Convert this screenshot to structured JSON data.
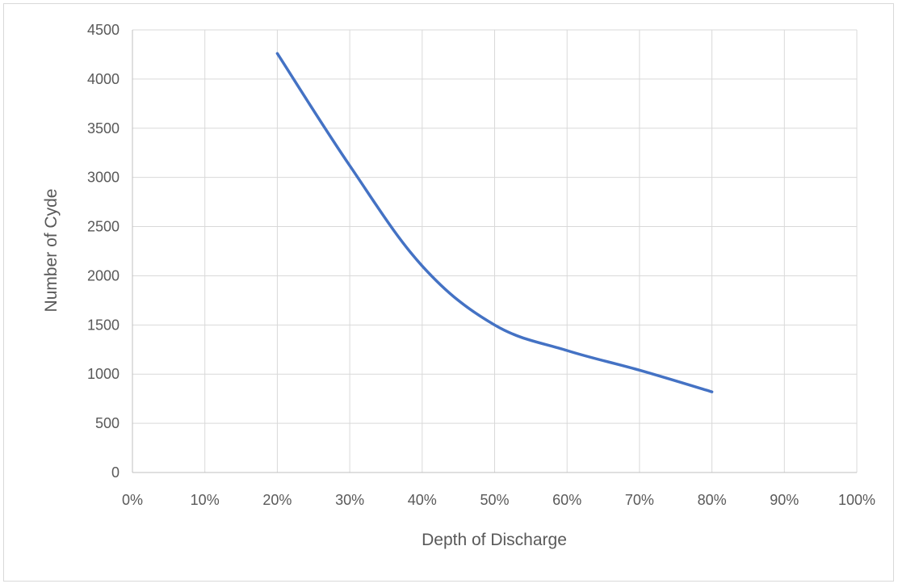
{
  "chart_data": {
    "type": "line",
    "title": "",
    "xlabel": "Depth of Discharge",
    "ylabel": "Number of Cyde",
    "xlim": [
      0,
      1
    ],
    "ylim": [
      0,
      4500
    ],
    "x_ticks": [
      0,
      0.1,
      0.2,
      0.3,
      0.4,
      0.5,
      0.6,
      0.7,
      0.8,
      0.9,
      1.0
    ],
    "x_tick_labels": [
      "0%",
      "10%",
      "20%",
      "30%",
      "40%",
      "50%",
      "60%",
      "70%",
      "80%",
      "90%",
      "100%"
    ],
    "y_ticks": [
      0,
      500,
      1000,
      1500,
      2000,
      2500,
      3000,
      3500,
      4000,
      4500
    ],
    "y_tick_labels": [
      "0",
      "500",
      "1000",
      "1500",
      "2000",
      "2500",
      "3000",
      "3500",
      "4000",
      "4500"
    ],
    "grid": true,
    "legend": "none",
    "series": [
      {
        "color": "#4472c4",
        "smooth": true,
        "x": [
          0.2,
          0.3,
          0.4,
          0.5,
          0.6,
          0.7,
          0.8
        ],
        "y": [
          4260,
          3120,
          2100,
          1500,
          1240,
          1040,
          820
        ]
      }
    ]
  }
}
